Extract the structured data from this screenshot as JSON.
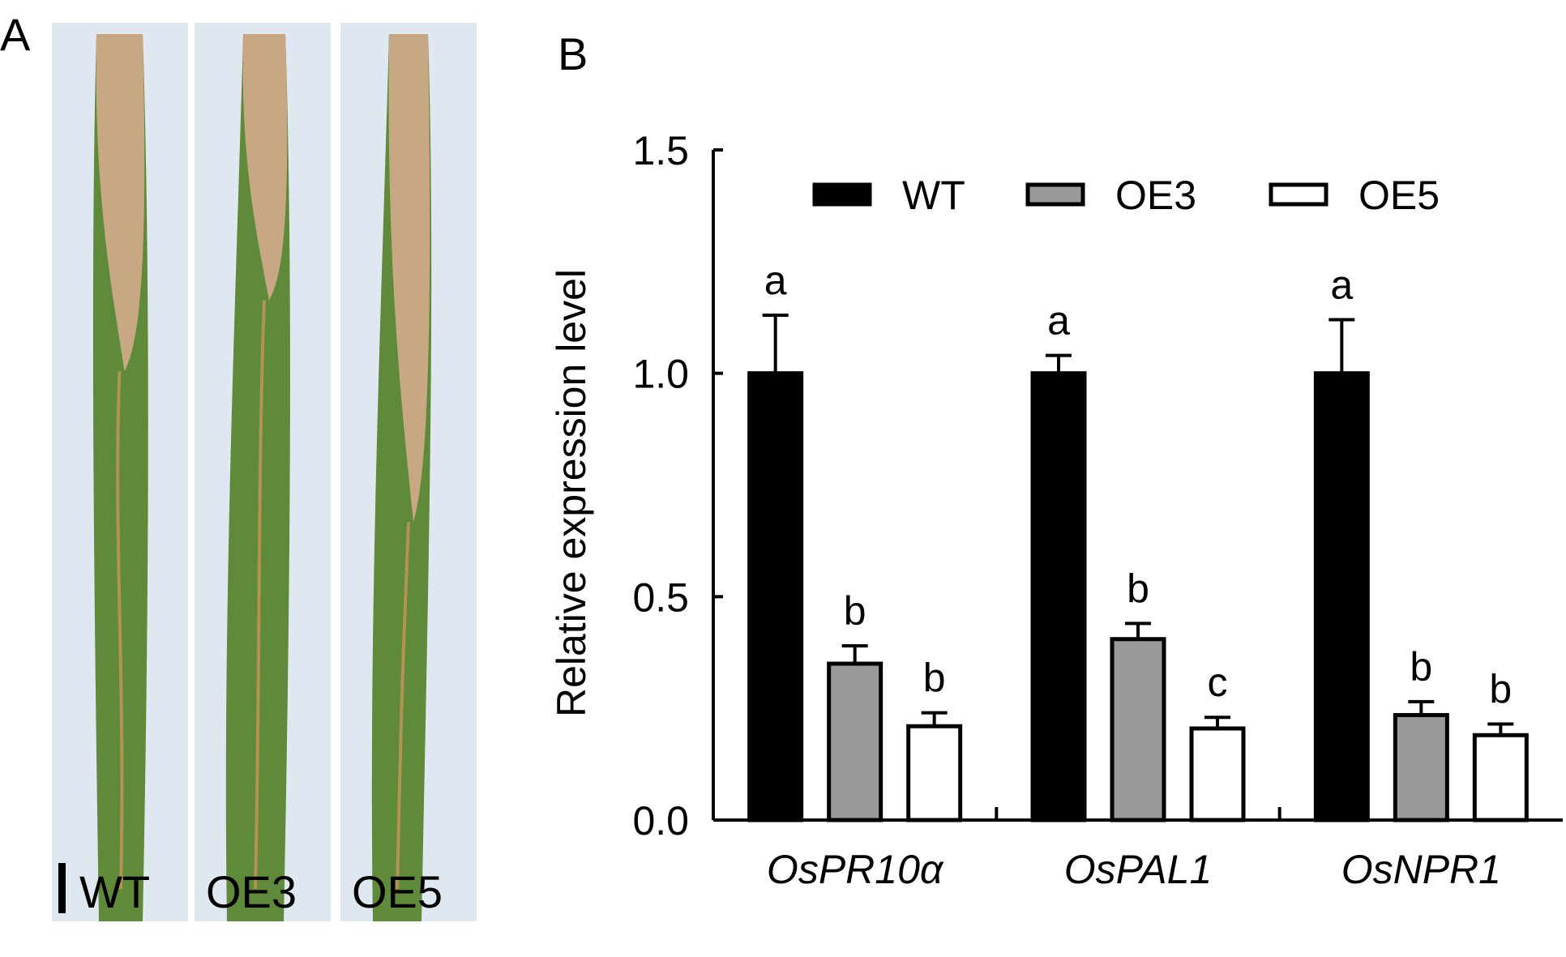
{
  "panels": {
    "a_letter": "A",
    "b_letter": "B"
  },
  "photo": {
    "strips": [
      {
        "label": "WT",
        "lesion_fraction": 0.38
      },
      {
        "label": "OE3",
        "lesion_fraction": 0.3
      },
      {
        "label": "OE5",
        "lesion_fraction": 0.55
      }
    ],
    "background_color": "#dfe8f0",
    "leaf_green": "#5f8a3a",
    "lesion_tan": "#c8a884"
  },
  "chart_data": {
    "type": "bar",
    "title": "",
    "xlabel": "",
    "ylabel": "Relative expression level",
    "ylim": [
      0,
      1.5
    ],
    "yticks": [
      "0.0",
      "0.5",
      "1.0",
      "1.5"
    ],
    "categories": [
      "OsPR10α",
      "OsPAL1",
      "OsNPR1"
    ],
    "legend_position": "top",
    "series": [
      {
        "name": "WT",
        "color": "#000000",
        "values": [
          1.0,
          1.0,
          1.0
        ],
        "errors": [
          0.13,
          0.04,
          0.12
        ],
        "letters": [
          "a",
          "a",
          "a"
        ]
      },
      {
        "name": "OE3",
        "color": "#999999",
        "values": [
          0.35,
          0.405,
          0.235
        ],
        "errors": [
          0.04,
          0.035,
          0.03
        ],
        "letters": [
          "b",
          "b",
          "b"
        ]
      },
      {
        "name": "OE5",
        "color": "#ffffff",
        "values": [
          0.21,
          0.205,
          0.19
        ],
        "errors": [
          0.03,
          0.025,
          0.025
        ],
        "letters": [
          "b",
          "c",
          "b"
        ]
      }
    ]
  }
}
